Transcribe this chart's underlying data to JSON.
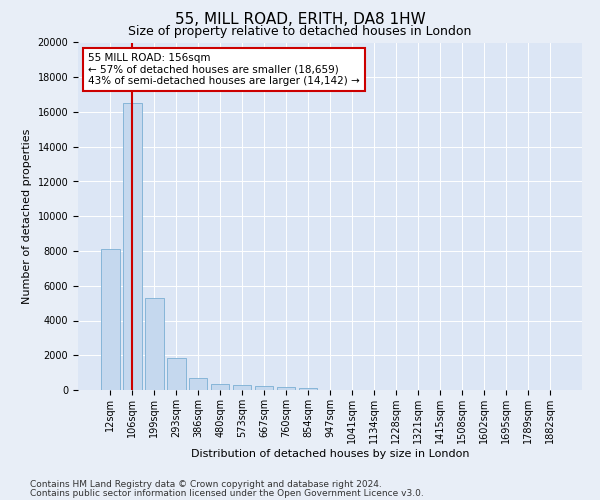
{
  "title": "55, MILL ROAD, ERITH, DA8 1HW",
  "subtitle": "Size of property relative to detached houses in London",
  "xlabel": "Distribution of detached houses by size in London",
  "ylabel": "Number of detached properties",
  "categories": [
    "12sqm",
    "106sqm",
    "199sqm",
    "293sqm",
    "386sqm",
    "480sqm",
    "573sqm",
    "667sqm",
    "760sqm",
    "854sqm",
    "947sqm",
    "1041sqm",
    "1134sqm",
    "1228sqm",
    "1321sqm",
    "1415sqm",
    "1508sqm",
    "1602sqm",
    "1695sqm",
    "1789sqm",
    "1882sqm"
  ],
  "values": [
    8100,
    16500,
    5300,
    1850,
    700,
    350,
    270,
    220,
    180,
    120,
    0,
    0,
    0,
    0,
    0,
    0,
    0,
    0,
    0,
    0,
    0
  ],
  "bar_color": "#c5d8ee",
  "bar_edgecolor": "#7aafd4",
  "vline_x": 1.0,
  "vline_color": "#cc0000",
  "annotation_text": "55 MILL ROAD: 156sqm\n← 57% of detached houses are smaller (18,659)\n43% of semi-detached houses are larger (14,142) →",
  "annotation_box_color": "#ffffff",
  "annotation_box_edgecolor": "#cc0000",
  "ylim": [
    0,
    20000
  ],
  "yticks": [
    0,
    2000,
    4000,
    6000,
    8000,
    10000,
    12000,
    14000,
    16000,
    18000,
    20000
  ],
  "bg_color": "#e8eef7",
  "plot_bg_color": "#dce6f5",
  "footer_line1": "Contains HM Land Registry data © Crown copyright and database right 2024.",
  "footer_line2": "Contains public sector information licensed under the Open Government Licence v3.0.",
  "title_fontsize": 11,
  "subtitle_fontsize": 9,
  "axis_label_fontsize": 8,
  "tick_fontsize": 7,
  "annotation_fontsize": 7.5,
  "footer_fontsize": 6.5
}
